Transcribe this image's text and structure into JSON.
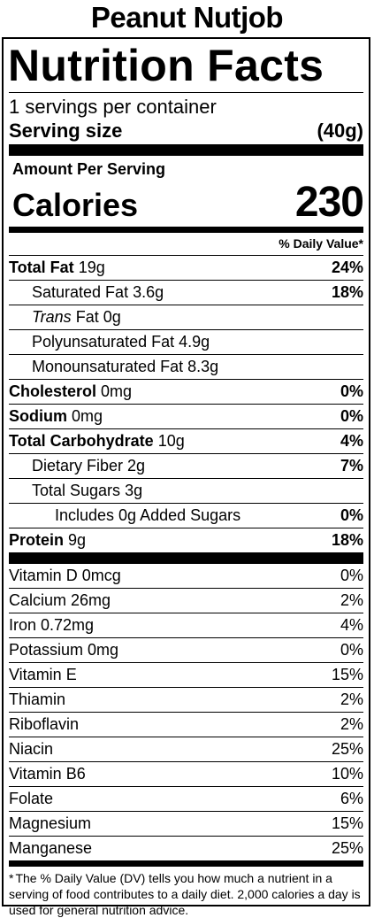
{
  "product": {
    "name": "Peanut Nutjob"
  },
  "label": {
    "heading": "Nutrition Facts",
    "servings_per_container": "1 servings per container",
    "serving_size_label": "Serving size",
    "serving_size_value": "(40g)",
    "amount_per_serving": "Amount Per Serving",
    "calories_label": "Calories",
    "calories_value": "230",
    "daily_value_header": "% Daily Value*"
  },
  "nutrients": [
    {
      "name": "Total Fat",
      "amount": "19g",
      "dv": "24%"
    },
    {
      "name": "Saturated Fat",
      "amount": "3.6g",
      "dv": "18%"
    },
    {
      "name_italic": "Trans",
      "name": "Fat",
      "amount": "0g",
      "dv": ""
    },
    {
      "name": "Polyunsaturated Fat",
      "amount": "4.9g",
      "dv": ""
    },
    {
      "name": "Monounsaturated Fat",
      "amount": "8.3g",
      "dv": ""
    },
    {
      "name": "Cholesterol",
      "amount": "0mg",
      "dv": "0%"
    },
    {
      "name": "Sodium",
      "amount": "0mg",
      "dv": "0%"
    },
    {
      "name": "Total Carbohydrate",
      "amount": "10g",
      "dv": "4%"
    },
    {
      "name": "Dietary Fiber",
      "amount": "2g",
      "dv": "7%"
    },
    {
      "name": "Total Sugars",
      "amount": "3g",
      "dv": ""
    },
    {
      "name": "Includes 0g Added Sugars",
      "amount": "",
      "dv": "0%"
    },
    {
      "name": "Protein",
      "amount": "9g",
      "dv": "18%"
    }
  ],
  "micronutrients": [
    {
      "label": "Vitamin D 0mcg",
      "dv": "0%"
    },
    {
      "label": "Calcium 26mg",
      "dv": "2%"
    },
    {
      "label": "Iron 0.72mg",
      "dv": "4%"
    },
    {
      "label": "Potassium 0mg",
      "dv": "0%"
    },
    {
      "label": "Vitamin E",
      "dv": "15%"
    },
    {
      "label": "Thiamin",
      "dv": "2%"
    },
    {
      "label": "Riboflavin",
      "dv": "2%"
    },
    {
      "label": "Niacin",
      "dv": "25%"
    },
    {
      "label": "Vitamin B6",
      "dv": "10%"
    },
    {
      "label": "Folate",
      "dv": "6%"
    },
    {
      "label": "Magnesium",
      "dv": "15%"
    },
    {
      "label": "Manganese",
      "dv": "25%"
    }
  ],
  "footnote": {
    "star": "*",
    "text": "The % Daily Value (DV) tells you how much a nutrient in a serving of food contributes to a daily diet. 2,000 calories a day is used for general nutrition advice."
  },
  "colors": {
    "ink": "#000000",
    "background": "#ffffff"
  }
}
